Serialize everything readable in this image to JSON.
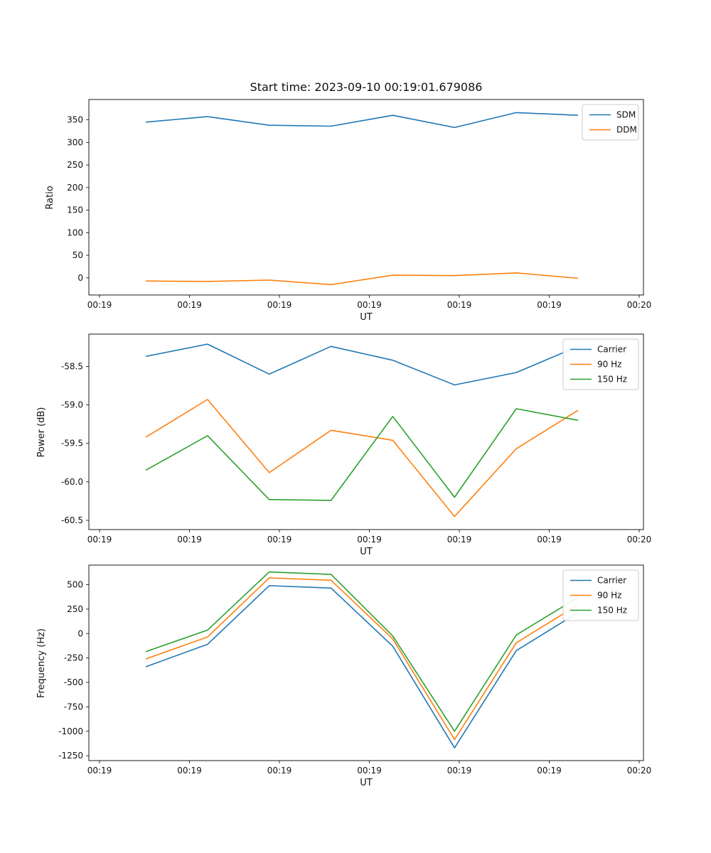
{
  "figure": {
    "title": "Start time: 2023-09-10 00:19:01.679086"
  },
  "colors": {
    "blue": "#1f77b4",
    "orange": "#ff7f0e",
    "green": "#2ca02c"
  },
  "chart_data": [
    {
      "type": "line",
      "title": "Start time: 2023-09-10 00:19:01.679086",
      "xlabel": "UT",
      "ylabel": "Ratio",
      "x_tick_labels": [
        "00:19",
        "00:19",
        "00:19",
        "00:19",
        "00:19",
        "00:19",
        "00:20"
      ],
      "yticks": [
        0,
        50,
        100,
        150,
        200,
        250,
        300,
        350
      ],
      "ytick_labels": [
        "0",
        "50",
        "100",
        "150",
        "200",
        "250",
        "300",
        "350"
      ],
      "ylim": [
        -38,
        395
      ],
      "grid": false,
      "legend_position": "upper right",
      "legend": [
        "SDM",
        "DDM"
      ],
      "x": [
        0,
        1,
        2,
        3,
        4,
        5,
        6,
        7
      ],
      "series": [
        {
          "name": "SDM",
          "color": "#1f77b4",
          "values": [
            345,
            357,
            338,
            336,
            360,
            333,
            366,
            360
          ]
        },
        {
          "name": "DDM",
          "color": "#ff7f0e",
          "values": [
            -7,
            -8,
            -5,
            -15,
            6,
            5,
            11,
            -1
          ]
        }
      ]
    },
    {
      "type": "line",
      "title": "",
      "xlabel": "UT",
      "ylabel": "Power (dB)",
      "x_tick_labels": [
        "00:19",
        "00:19",
        "00:19",
        "00:19",
        "00:19",
        "00:19",
        "00:20"
      ],
      "yticks": [
        -60.5,
        -60.0,
        -59.5,
        -59.0,
        -58.5
      ],
      "ytick_labels": [
        "-60.5",
        "-60.0",
        "-59.5",
        "-59.0",
        "-58.5"
      ],
      "ylim": [
        -60.62,
        -58.08
      ],
      "grid": false,
      "legend_position": "upper right",
      "legend": [
        "Carrier",
        "90 Hz",
        "150 Hz"
      ],
      "x": [
        0,
        1,
        2,
        3,
        4,
        5,
        6,
        7
      ],
      "series": [
        {
          "name": "Carrier",
          "color": "#1f77b4",
          "values": [
            -58.37,
            -58.21,
            -58.6,
            -58.24,
            -58.42,
            -58.74,
            -58.58,
            -58.24
          ]
        },
        {
          "name": "90 Hz",
          "color": "#ff7f0e",
          "values": [
            -59.42,
            -58.93,
            -59.88,
            -59.33,
            -59.46,
            -60.45,
            -59.57,
            -59.07
          ]
        },
        {
          "name": "150 Hz",
          "color": "#2ca02c",
          "values": [
            -59.85,
            -59.4,
            -60.23,
            -60.24,
            -59.15,
            -60.2,
            -59.05,
            -59.2
          ]
        }
      ]
    },
    {
      "type": "line",
      "title": "",
      "xlabel": "UT",
      "ylabel": "Frequency (Hz)",
      "x_tick_labels": [
        "00:19",
        "00:19",
        "00:19",
        "00:19",
        "00:19",
        "00:19",
        "00:20"
      ],
      "yticks": [
        -1250,
        -1000,
        -750,
        -500,
        -250,
        0,
        250,
        500
      ],
      "ytick_labels": [
        "-1250",
        "-1000",
        "-750",
        "-500",
        "-250",
        "0",
        "250",
        "500"
      ],
      "ylim": [
        -1300,
        700
      ],
      "grid": false,
      "legend_position": "upper right",
      "legend": [
        "Carrier",
        "90 Hz",
        "150 Hz"
      ],
      "x": [
        0,
        1,
        2,
        3,
        4,
        5,
        6,
        7
      ],
      "series": [
        {
          "name": "Carrier",
          "color": "#1f77b4",
          "values": [
            -340,
            -110,
            490,
            465,
            -130,
            -1170,
            -175,
            215
          ]
        },
        {
          "name": "90 Hz",
          "color": "#ff7f0e",
          "values": [
            -260,
            -35,
            570,
            545,
            -55,
            -1085,
            -95,
            295
          ]
        },
        {
          "name": "150 Hz",
          "color": "#2ca02c",
          "values": [
            -185,
            35,
            630,
            605,
            -25,
            -1000,
            -15,
            370
          ]
        }
      ]
    }
  ]
}
